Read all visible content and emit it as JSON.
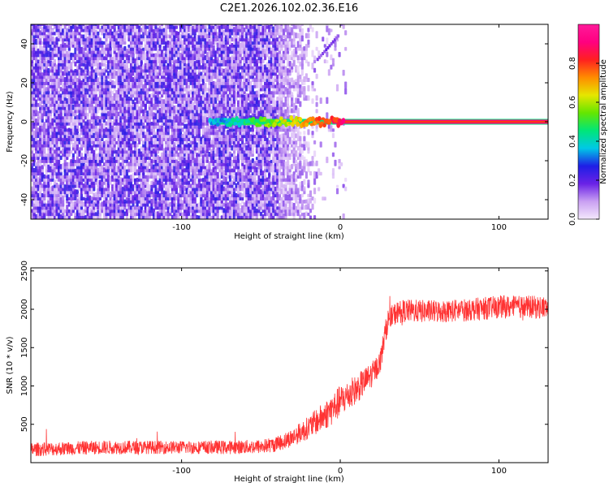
{
  "chart_data": [
    {
      "type": "heatmap",
      "title": "C2E1.2026.102.02.36.E16",
      "xlabel": "Height of straight line (km)",
      "ylabel": "Frequency (Hz)",
      "xlim": [
        -195,
        131
      ],
      "ylim": [
        -50,
        50
      ],
      "xticks": [
        -100,
        0,
        100
      ],
      "yticks": [
        -40,
        -20,
        0,
        20,
        40
      ],
      "colorbar": {
        "label": "Normalized spectral amplitude",
        "range": [
          0,
          1
        ],
        "ticks": [
          0.0,
          0.2,
          0.4,
          0.6,
          0.8
        ],
        "colors": [
          "#f4e8fc",
          "#c9a0f2",
          "#6a22e6",
          "#1e1ee6",
          "#00c8e6",
          "#00e678",
          "#64e600",
          "#e6e600",
          "#ff8c00",
          "#ff2020",
          "#ff0080",
          "#ff1a9a"
        ]
      },
      "noise_floor_amplitude": 0.1,
      "noise_region_km": [
        -195,
        -40
      ],
      "signal_line": {
        "frequency_hz": 0,
        "start_km": -82,
        "end_km": 131,
        "amplitude": 1.0
      },
      "upper_streak": {
        "from_km": -15,
        "to_km": -2,
        "from_hz": 32,
        "to_hz": 44,
        "amplitude": 0.15
      }
    },
    {
      "type": "line",
      "xlabel": "Height of straight line (km)",
      "ylabel": "SNR (10 * v/v)",
      "xlim": [
        -195,
        131
      ],
      "ylim": [
        0,
        2540
      ],
      "xticks": [
        -100,
        0,
        100
      ],
      "yticks": [
        500,
        1000,
        1500,
        2000,
        2500
      ],
      "series": [
        {
          "name": "SNR",
          "color": "#ff3333",
          "x": [
            -195,
            -150,
            -100,
            -70,
            -50,
            -40,
            -30,
            -20,
            -10,
            -5,
            0,
            10,
            20,
            25,
            28,
            30,
            35,
            40,
            60,
            80,
            100,
            120,
            131
          ],
          "y": [
            170,
            200,
            200,
            200,
            210,
            240,
            330,
            460,
            610,
            700,
            800,
            950,
            1150,
            1300,
            1650,
            1850,
            1950,
            1980,
            1970,
            1990,
            2030,
            2030,
            2020
          ],
          "spread": [
            180,
            180,
            170,
            180,
            190,
            200,
            240,
            300,
            380,
            420,
            420,
            380,
            330,
            300,
            320,
            300,
            300,
            300,
            300,
            300,
            300,
            300,
            300
          ]
        }
      ]
    }
  ]
}
